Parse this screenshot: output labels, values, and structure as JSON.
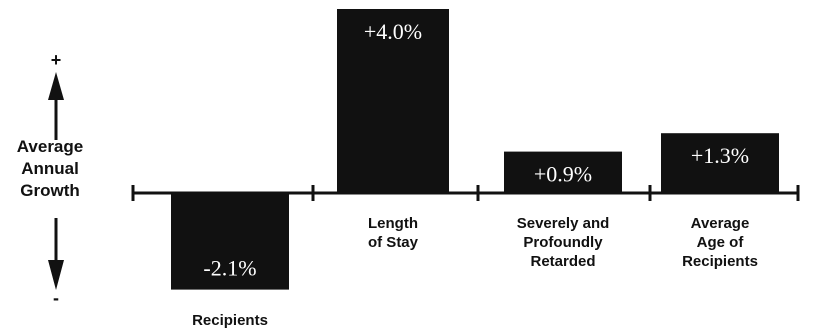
{
  "chart_data": {
    "type": "bar",
    "ylabel": "Average Annual Growth",
    "ylabel_lines": [
      "Average",
      "Annual",
      "Growth"
    ],
    "axis_plus": "+",
    "axis_minus": "-",
    "categories": [
      [
        "Recipients"
      ],
      [
        "Length",
        "of Stay"
      ],
      [
        "Severely and",
        "Profoundly",
        "Retarded"
      ],
      [
        "Average",
        "Age of",
        "Recipients"
      ]
    ],
    "values": [
      -2.1,
      4.0,
      0.9,
      1.3
    ],
    "value_labels": [
      "-2.1%",
      "+4.0%",
      "+0.9%",
      "+1.3%"
    ],
    "bar_color": "#111111",
    "value_label_color": "#ffffff",
    "grid": false,
    "legend": "none"
  }
}
